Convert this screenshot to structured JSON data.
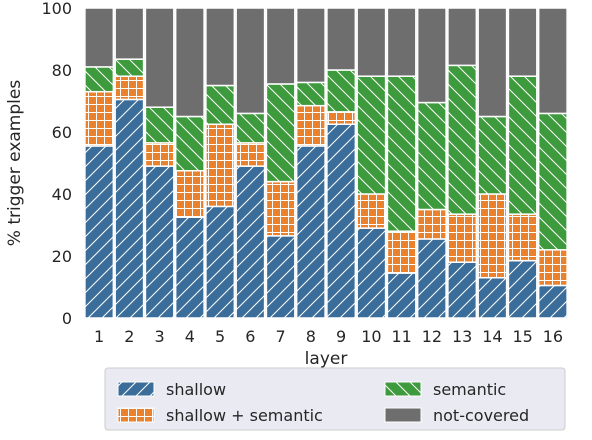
{
  "chart_data": {
    "type": "bar",
    "stacked": true,
    "title": "",
    "xlabel": "layer",
    "ylabel": "% trigger examples",
    "ylim": [
      0,
      100
    ],
    "yticks": [
      0,
      20,
      40,
      60,
      80,
      100
    ],
    "grid": true,
    "legend_position": "bottom",
    "categories": [
      "1",
      "2",
      "3",
      "4",
      "5",
      "6",
      "7",
      "8",
      "9",
      "10",
      "11",
      "12",
      "13",
      "14",
      "15",
      "16"
    ],
    "series": [
      {
        "name": "shallow",
        "color": "#3a6d9a",
        "hatch": "diagonal",
        "values": [
          55.5,
          70.5,
          49,
          32.5,
          36,
          49,
          26.5,
          55.5,
          62.5,
          29,
          14.5,
          25.5,
          18,
          13,
          18.5,
          10.5
        ]
      },
      {
        "name": "shallow + semantic",
        "color": "#e8822f",
        "hatch": "grid",
        "values": [
          17.5,
          7.5,
          7.5,
          15,
          26.5,
          7.5,
          17.5,
          13,
          4,
          11,
          13.5,
          9.5,
          15.5,
          27,
          15,
          11.5
        ]
      },
      {
        "name": "semantic",
        "color": "#3d9a3d",
        "hatch": "backdiagonal",
        "values": [
          8,
          5.5,
          11.5,
          17.5,
          12.5,
          9.5,
          31.5,
          7.5,
          13.5,
          38,
          50,
          34.5,
          48,
          25,
          44.5,
          44
        ]
      },
      {
        "name": "not-covered",
        "color": "#6e6e6e",
        "hatch": "none",
        "values": [
          19,
          16.5,
          32,
          35,
          25,
          34,
          24.5,
          24,
          20,
          22,
          22,
          30.5,
          18.5,
          35,
          22,
          34
        ]
      }
    ],
    "legend_order": [
      "shallow",
      "semantic",
      "shallow + semantic",
      "not-covered"
    ]
  }
}
